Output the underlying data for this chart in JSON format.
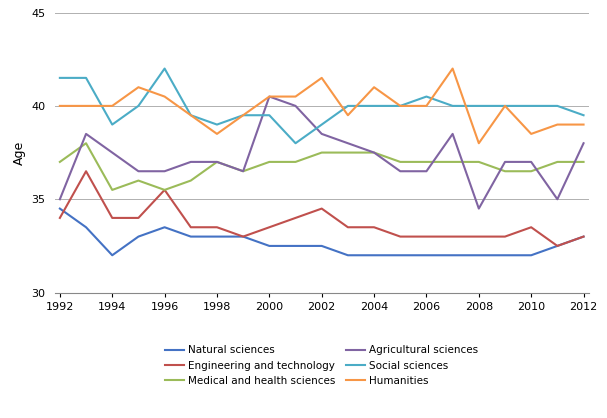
{
  "years": [
    1992,
    1993,
    1994,
    1995,
    1996,
    1997,
    1998,
    1999,
    2000,
    2001,
    2002,
    2003,
    2004,
    2005,
    2006,
    2007,
    2008,
    2009,
    2010,
    2011,
    2012
  ],
  "series": {
    "Natural sciences": [
      34.5,
      33.5,
      32.0,
      33.0,
      33.5,
      33.0,
      33.0,
      33.0,
      32.5,
      32.5,
      32.5,
      32.0,
      32.0,
      32.0,
      32.0,
      32.0,
      32.0,
      32.0,
      32.0,
      32.5,
      33.0
    ],
    "Engineering and technology": [
      34.0,
      36.5,
      34.0,
      34.0,
      35.5,
      33.5,
      33.5,
      33.0,
      33.5,
      34.0,
      34.5,
      33.5,
      33.5,
      33.0,
      33.0,
      33.0,
      33.0,
      33.0,
      33.5,
      32.5,
      33.0
    ],
    "Medical and health sciences": [
      37.0,
      38.0,
      35.5,
      36.0,
      35.5,
      36.0,
      37.0,
      36.5,
      37.0,
      37.0,
      37.5,
      37.5,
      37.5,
      37.0,
      37.0,
      37.0,
      37.0,
      36.5,
      36.5,
      37.0,
      37.0
    ],
    "Agricultural sciences": [
      35.0,
      38.5,
      37.5,
      36.5,
      36.5,
      37.0,
      37.0,
      36.5,
      40.5,
      40.0,
      38.5,
      38.0,
      37.5,
      36.5,
      36.5,
      38.5,
      34.5,
      37.0,
      37.0,
      35.0,
      38.0
    ],
    "Social sciences": [
      41.5,
      41.5,
      39.0,
      40.0,
      42.0,
      39.5,
      39.0,
      39.5,
      39.5,
      38.0,
      39.0,
      40.0,
      40.0,
      40.0,
      40.5,
      40.0,
      40.0,
      40.0,
      40.0,
      40.0,
      39.5
    ],
    "Humanities": [
      40.0,
      40.0,
      40.0,
      41.0,
      40.5,
      39.5,
      38.5,
      39.5,
      40.5,
      40.5,
      41.5,
      39.5,
      41.0,
      40.0,
      40.0,
      42.0,
      38.0,
      40.0,
      38.5,
      39.0,
      39.0
    ]
  },
  "colors": {
    "Natural sciences": "#4472C4",
    "Engineering and technology": "#C0504D",
    "Medical and health sciences": "#9BBB59",
    "Agricultural sciences": "#8064A2",
    "Social sciences": "#4BACC6",
    "Humanities": "#F79646"
  },
  "legend_order_col1": [
    "Natural sciences",
    "Medical and health sciences",
    "Social sciences"
  ],
  "legend_order_col2": [
    "Engineering and technology",
    "Agricultural sciences",
    "Humanities"
  ],
  "ylabel": "Age",
  "ylim": [
    30,
    45
  ],
  "yticks": [
    30,
    35,
    40,
    45
  ],
  "xlim": [
    1992,
    2012
  ],
  "xticks": [
    1992,
    1994,
    1996,
    1998,
    2000,
    2002,
    2004,
    2006,
    2008,
    2010,
    2012
  ],
  "background_color": "#ffffff",
  "grid_color": "#b0b0b0"
}
